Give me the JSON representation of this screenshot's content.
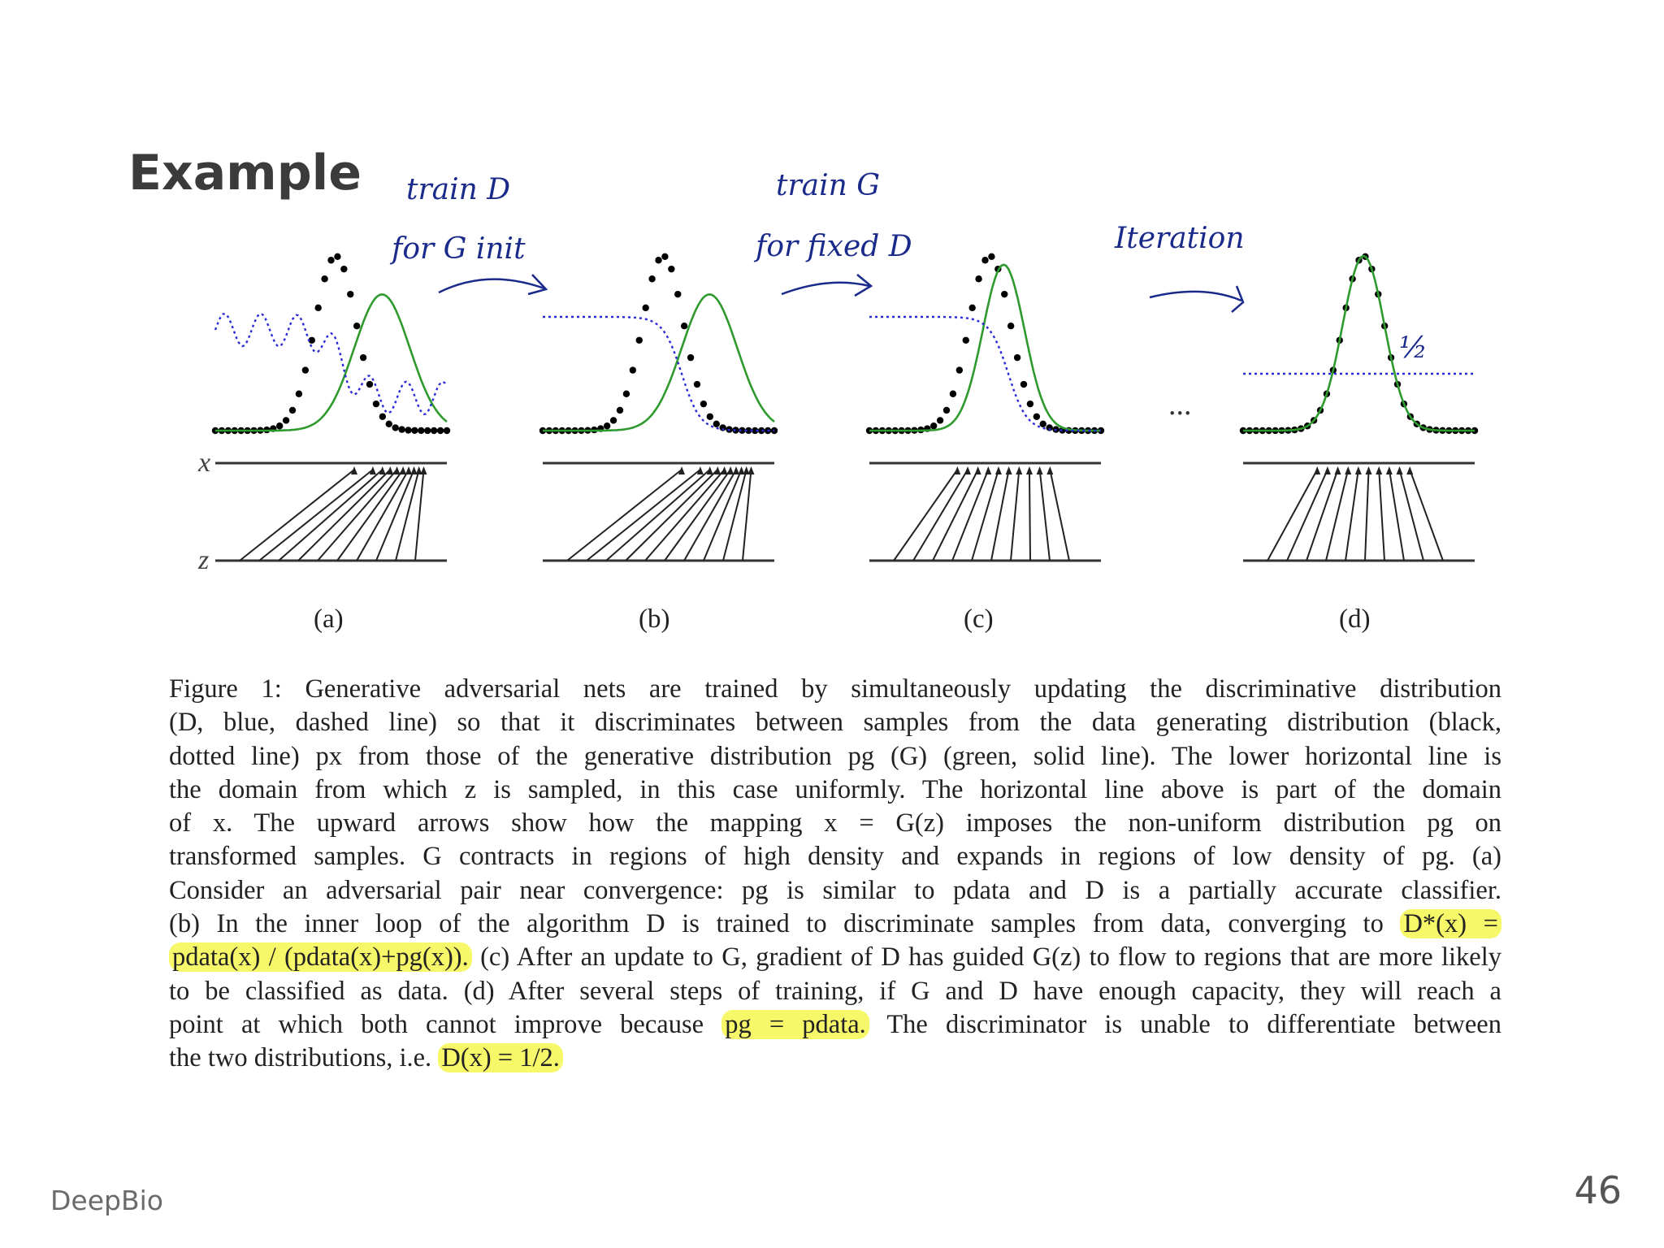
{
  "slide": {
    "title": "Example",
    "footer_left": "DeepBio",
    "page_number": "46"
  },
  "annotations": {
    "a1_line1": "train D",
    "a1_line2": "for G init",
    "a2_line1": "train G",
    "a2_line2": "for fixed D",
    "a3_line1": "Iteration",
    "half": "½"
  },
  "figure": {
    "x_label": "x",
    "z_label": "z",
    "ellipsis": "...",
    "panels": [
      "(a)",
      "(b)",
      "(c)",
      "(d)"
    ],
    "colors": {
      "discriminator": "#2a2ad8",
      "generator": "#2e9a2e",
      "data": "#000000",
      "highlight": "#f7f76a",
      "ink": "#1a2a8a"
    }
  },
  "caption": {
    "lines": [
      "Figure 1: Generative adversarial nets are trained by simultaneously updating the discriminative distribution",
      "(D, blue, dashed line) so that it discriminates between samples from the data generating distribution (black,",
      "dotted line) px from those of the generative distribution pg (G) (green, solid line). The lower horizontal line is",
      "the domain from which z is sampled, in this case uniformly. The horizontal line above is part of the domain",
      "of x. The upward arrows show how the mapping x = G(z) imposes the non-uniform distribution pg on",
      "transformed samples. G contracts in regions of high density and expands in regions of low density of pg. (a)",
      "Consider an adversarial pair near convergence: pg is similar to pdata and D is a partially accurate classifier.",
      "(b) In the inner loop of the algorithm D is trained to discriminate samples from data, converging to",
      "(c) After an update to G, gradient of D has guided G(z) to flow to regions that are more likely",
      "to be classified as data. (d) After several steps of training, if G and D have enough capacity, they will reach a",
      "point at which both cannot improve because",
      "The discriminator is unable to differentiate between",
      "the two distributions, i.e."
    ],
    "highlight_dstar": "D*(x) =",
    "highlight_frac": "pdata(x) / (pdata(x)+pg(x)).",
    "highlight_pg": "pg = pdata.",
    "highlight_half": "D(x) = 1/2."
  }
}
